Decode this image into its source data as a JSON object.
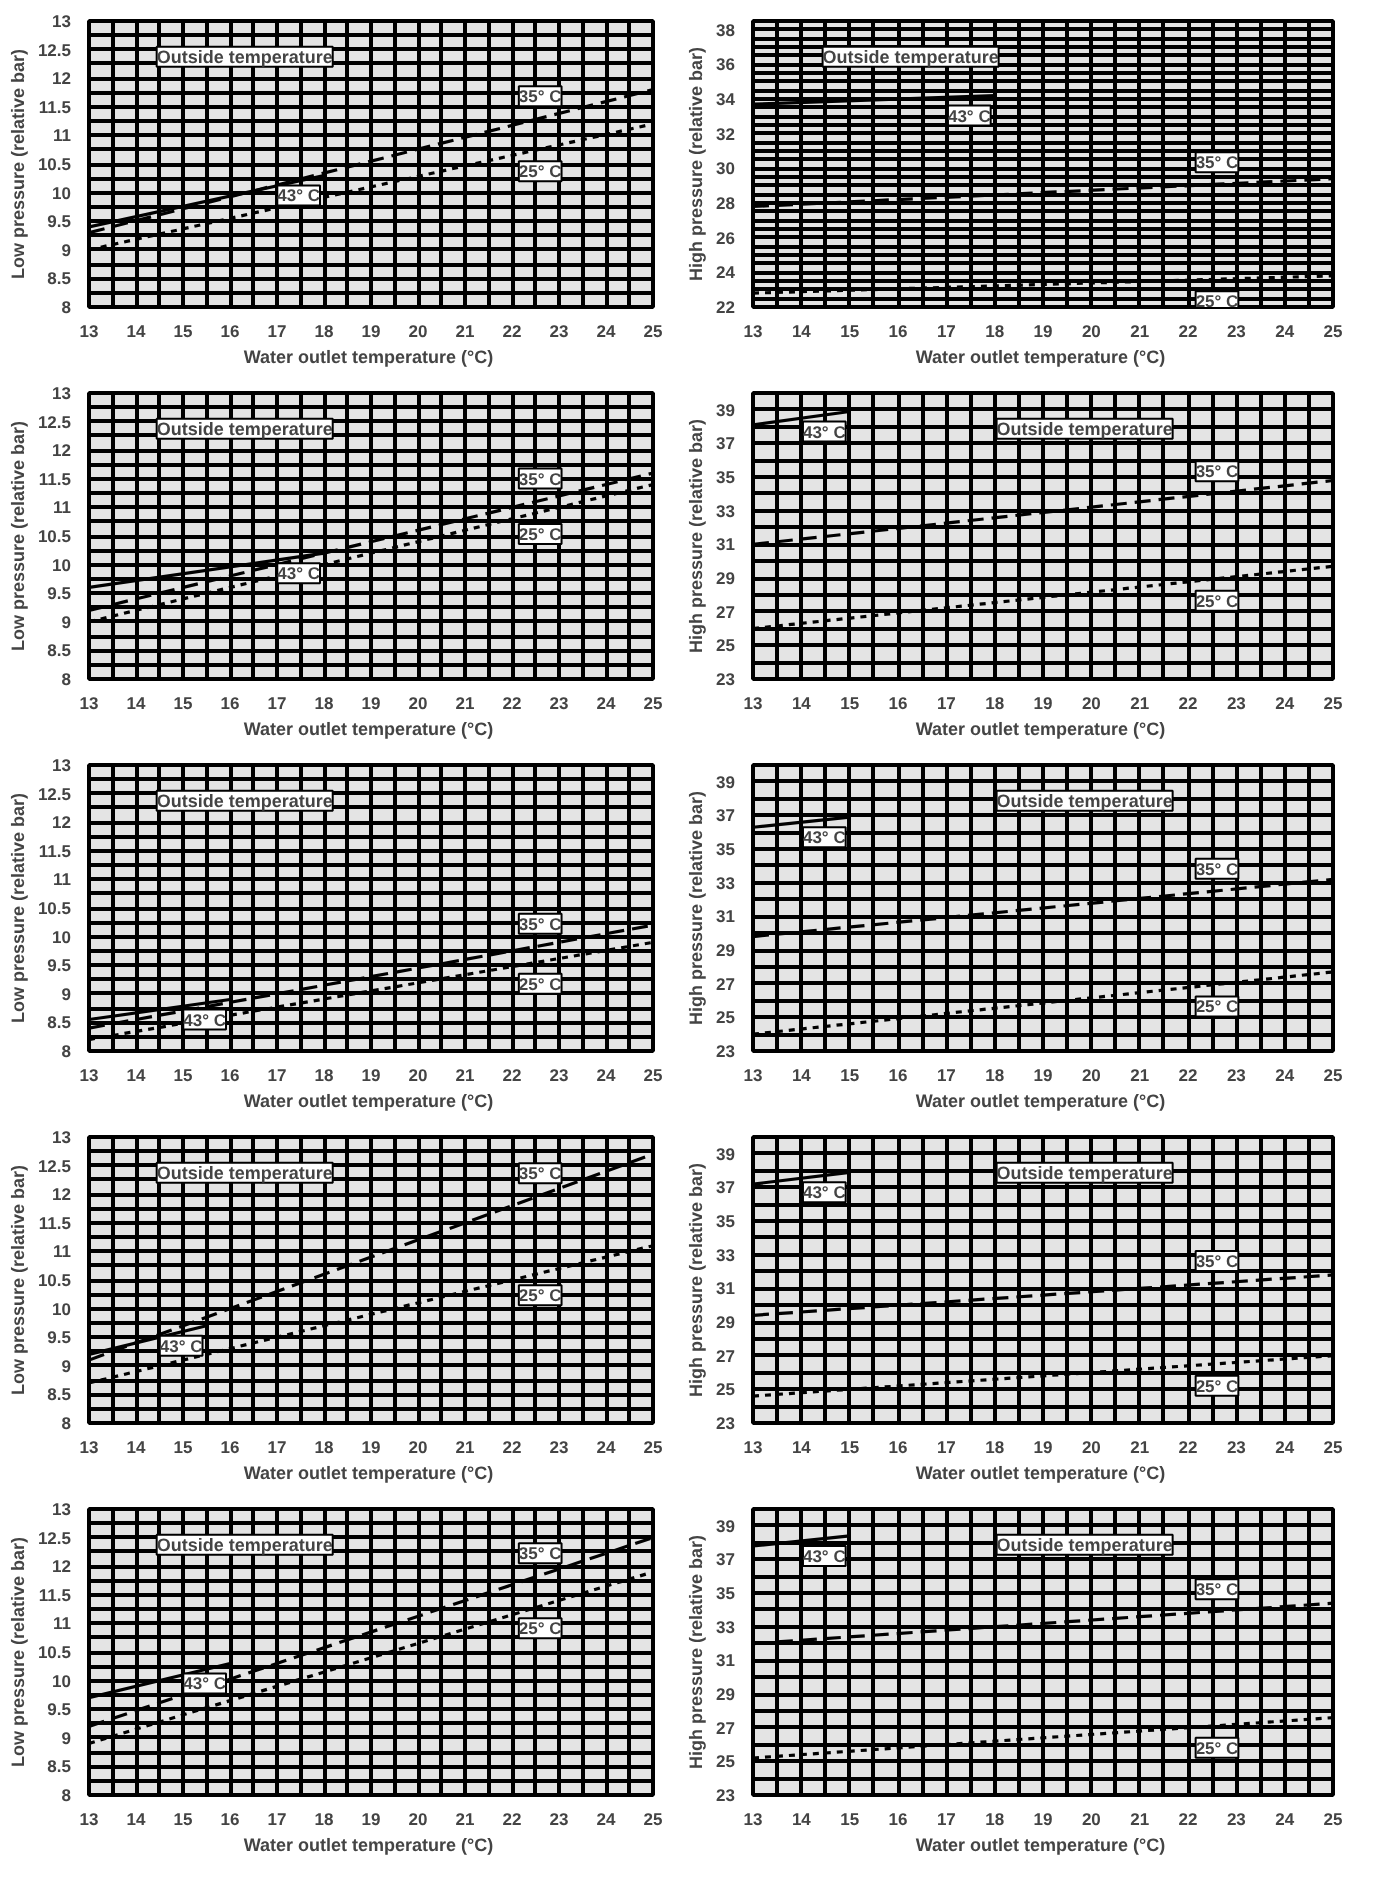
{
  "chart_data": [
    {
      "type": "line",
      "xlabel": "Water outlet temperature  (°C)",
      "ylabel": "Low pressure (relative bar)",
      "annotations": [
        "Outside temperature"
      ],
      "xlim": [
        13,
        25
      ],
      "ylim": [
        8,
        13
      ],
      "grid": true,
      "xticks": [
        13,
        {
          "value": 13.5,
          "label": null
        },
        14,
        {
          "value": 14.5,
          "label": null
        },
        15,
        {
          "value": 15.5,
          "label": null
        },
        16,
        {
          "value": 16.5,
          "label": null
        },
        17,
        {
          "value": 17.5,
          "label": null
        },
        18,
        {
          "value": 18.5,
          "label": null
        },
        19,
        {
          "value": 19.5,
          "label": null
        },
        20,
        {
          "value": 20.5,
          "label": null
        },
        21,
        {
          "value": 21.5,
          "label": null
        },
        22,
        {
          "value": 22.5,
          "label": null
        },
        23,
        {
          "value": 23.5,
          "label": null
        },
        24,
        {
          "value": 24.5,
          "label": null
        },
        25
      ],
      "yticks": [
        8,
        {
          "value": 8.25,
          "label": null
        },
        8.5,
        {
          "value": 8.75,
          "label": null
        },
        9,
        {
          "value": 9.25,
          "label": null
        },
        9.5,
        {
          "value": 9.75,
          "label": null
        },
        10,
        {
          "value": 10.25,
          "label": null
        },
        10.5,
        {
          "value": 10.75,
          "label": null
        },
        11,
        {
          "value": 11.25,
          "label": null
        },
        11.5,
        {
          "value": 11.75,
          "label": null
        },
        12,
        {
          "value": 12.25,
          "label": null
        },
        12.5,
        {
          "value": 12.75,
          "label": null
        },
        13
      ],
      "series": [
        {
          "name": "43° C",
          "color": "#000000",
          "line_style": "solid",
          "x": [
            13,
            18
          ],
          "values": [
            9.4,
            10.3
          ]
        },
        {
          "name": "35° C",
          "color": "#000000",
          "line_style": "dashed",
          "x": [
            13,
            25
          ],
          "values": [
            9.3,
            11.8
          ]
        },
        {
          "name": "25° C",
          "color": "#000000",
          "line_style": "dotted",
          "x": [
            13,
            25
          ],
          "values": [
            9.0,
            11.2
          ]
        }
      ]
    },
    {
      "type": "line",
      "xlabel": "Water outlet temperature  (°C)",
      "ylabel": "High pressure (relative bar)",
      "annotations": [
        "Outside temperature"
      ],
      "xlim": [
        13,
        25
      ],
      "ylim": [
        22,
        38.5
      ],
      "grid": true,
      "xticks": [
        13,
        {
          "value": 13.5,
          "label": null
        },
        14,
        {
          "value": 14.5,
          "label": null
        },
        15,
        {
          "value": 15.5,
          "label": null
        },
        16,
        {
          "value": 16.5,
          "label": null
        },
        17,
        {
          "value": 17.5,
          "label": null
        },
        18,
        {
          "value": 18.5,
          "label": null
        },
        19,
        {
          "value": 19.5,
          "label": null
        },
        20,
        {
          "value": 20.5,
          "label": null
        },
        21,
        {
          "value": 21.5,
          "label": null
        },
        22,
        {
          "value": 22.5,
          "label": null
        },
        23,
        {
          "value": 23.5,
          "label": null
        },
        24,
        {
          "value": 24.5,
          "label": null
        },
        25
      ],
      "yticks": [
        22,
        {
          "value": 22.5,
          "label": null
        },
        {
          "value": 23,
          "label": null
        },
        {
          "value": 23.5,
          "label": null
        },
        24,
        {
          "value": 24.5,
          "label": null
        },
        {
          "value": 25,
          "label": null
        },
        {
          "value": 25.5,
          "label": null
        },
        26,
        {
          "value": 26.5,
          "label": null
        },
        {
          "value": 27,
          "label": null
        },
        {
          "value": 27.5,
          "label": null
        },
        28,
        {
          "value": 28.5,
          "label": null
        },
        {
          "value": 29,
          "label": null
        },
        {
          "value": 29.5,
          "label": null
        },
        30,
        {
          "value": 30.5,
          "label": null
        },
        {
          "value": 31,
          "label": null
        },
        {
          "value": 31.5,
          "label": null
        },
        32,
        {
          "value": 32.5,
          "label": null
        },
        {
          "value": 33,
          "label": null
        },
        {
          "value": 33.5,
          "label": null
        },
        34,
        {
          "value": 34.5,
          "label": null
        },
        {
          "value": 35,
          "label": null
        },
        {
          "value": 35.5,
          "label": null
        },
        36,
        {
          "value": 36.5,
          "label": null
        },
        {
          "value": 37,
          "label": null
        },
        {
          "value": 37.5,
          "label": null
        },
        38,
        {
          "value": 38.5,
          "label": null
        }
      ],
      "series": [
        {
          "name": "43° C",
          "color": "#000000",
          "line_style": "solid",
          "x": [
            13,
            18
          ],
          "values": [
            33.7,
            34.2
          ]
        },
        {
          "name": "35° C",
          "color": "#000000",
          "line_style": "dashed",
          "x": [
            13,
            25
          ],
          "values": [
            27.8,
            29.4
          ]
        },
        {
          "name": "25° C",
          "color": "#000000",
          "line_style": "dotted",
          "x": [
            13,
            25
          ],
          "values": [
            22.8,
            23.8
          ]
        }
      ]
    },
    {
      "type": "line",
      "xlabel": "Water outlet temperature  (°C)",
      "ylabel": "Low pressure (relative bar)",
      "annotations": [
        "Outside temperature"
      ],
      "xlim": [
        13,
        25
      ],
      "ylim": [
        8,
        13
      ],
      "grid": true,
      "xticks": [
        13,
        {
          "value": 13.5,
          "label": null
        },
        14,
        {
          "value": 14.5,
          "label": null
        },
        15,
        {
          "value": 15.5,
          "label": null
        },
        16,
        {
          "value": 16.5,
          "label": null
        },
        17,
        {
          "value": 17.5,
          "label": null
        },
        18,
        {
          "value": 18.5,
          "label": null
        },
        19,
        {
          "value": 19.5,
          "label": null
        },
        20,
        {
          "value": 20.5,
          "label": null
        },
        21,
        {
          "value": 21.5,
          "label": null
        },
        22,
        {
          "value": 22.5,
          "label": null
        },
        23,
        {
          "value": 23.5,
          "label": null
        },
        24,
        {
          "value": 24.5,
          "label": null
        },
        25
      ],
      "yticks": [
        8,
        {
          "value": 8.25,
          "label": null
        },
        8.5,
        {
          "value": 8.75,
          "label": null
        },
        9,
        {
          "value": 9.25,
          "label": null
        },
        9.5,
        {
          "value": 9.75,
          "label": null
        },
        10,
        {
          "value": 10.25,
          "label": null
        },
        10.5,
        {
          "value": 10.75,
          "label": null
        },
        11,
        {
          "value": 11.25,
          "label": null
        },
        11.5,
        {
          "value": 11.75,
          "label": null
        },
        12,
        {
          "value": 12.25,
          "label": null
        },
        12.5,
        {
          "value": 12.75,
          "label": null
        },
        13
      ],
      "series": [
        {
          "name": "43° C",
          "color": "#000000",
          "line_style": "solid",
          "x": [
            13,
            18
          ],
          "values": [
            9.6,
            10.2
          ]
        },
        {
          "name": "35° C",
          "color": "#000000",
          "line_style": "dashed",
          "x": [
            13,
            25
          ],
          "values": [
            9.2,
            11.6
          ]
        },
        {
          "name": "25° C",
          "color": "#000000",
          "line_style": "dotted",
          "x": [
            13,
            25
          ],
          "values": [
            9.0,
            11.4
          ]
        }
      ]
    },
    {
      "type": "line",
      "xlabel": "Water outlet temperature  (°C)",
      "ylabel": "High pressure (relative bar)",
      "annotations": [
        "Outside temperature"
      ],
      "xlim": [
        13,
        25
      ],
      "ylim": [
        23,
        40
      ],
      "grid": true,
      "xticks": [
        13,
        {
          "value": 13.5,
          "label": null
        },
        14,
        {
          "value": 14.5,
          "label": null
        },
        15,
        {
          "value": 15.5,
          "label": null
        },
        16,
        {
          "value": 16.5,
          "label": null
        },
        17,
        {
          "value": 17.5,
          "label": null
        },
        18,
        {
          "value": 18.5,
          "label": null
        },
        19,
        {
          "value": 19.5,
          "label": null
        },
        20,
        {
          "value": 20.5,
          "label": null
        },
        21,
        {
          "value": 21.5,
          "label": null
        },
        22,
        {
          "value": 22.5,
          "label": null
        },
        23,
        {
          "value": 23.5,
          "label": null
        },
        24,
        {
          "value": 24.5,
          "label": null
        },
        25
      ],
      "yticks": [
        23,
        {
          "value": 24,
          "label": null
        },
        25,
        {
          "value": 26,
          "label": null
        },
        27,
        {
          "value": 28,
          "label": null
        },
        29,
        {
          "value": 30,
          "label": null
        },
        31,
        {
          "value": 32,
          "label": null
        },
        33,
        {
          "value": 34,
          "label": null
        },
        35,
        {
          "value": 36,
          "label": null
        },
        37,
        {
          "value": 38,
          "label": null
        },
        39,
        {
          "value": 40,
          "label": null
        }
      ],
      "series": [
        {
          "name": "43° C",
          "color": "#000000",
          "line_style": "solid",
          "x": [
            13,
            15
          ],
          "values": [
            38.1,
            38.9
          ]
        },
        {
          "name": "35° C",
          "color": "#000000",
          "line_style": "dashed",
          "x": [
            13,
            25
          ],
          "values": [
            31.0,
            34.8
          ]
        },
        {
          "name": "25° C",
          "color": "#000000",
          "line_style": "dotted",
          "x": [
            13,
            25
          ],
          "values": [
            26.0,
            29.7
          ]
        }
      ]
    },
    {
      "type": "line",
      "xlabel": "Water outlet temperature  (°C)",
      "ylabel": "Low pressure (relative bar)",
      "annotations": [
        "Outside temperature"
      ],
      "xlim": [
        13,
        25
      ],
      "ylim": [
        8,
        13
      ],
      "grid": true,
      "xticks": [
        13,
        {
          "value": 13.5,
          "label": null
        },
        14,
        {
          "value": 14.5,
          "label": null
        },
        15,
        {
          "value": 15.5,
          "label": null
        },
        16,
        {
          "value": 16.5,
          "label": null
        },
        17,
        {
          "value": 17.5,
          "label": null
        },
        18,
        {
          "value": 18.5,
          "label": null
        },
        19,
        {
          "value": 19.5,
          "label": null
        },
        20,
        {
          "value": 20.5,
          "label": null
        },
        21,
        {
          "value": 21.5,
          "label": null
        },
        22,
        {
          "value": 22.5,
          "label": null
        },
        23,
        {
          "value": 23.5,
          "label": null
        },
        24,
        {
          "value": 24.5,
          "label": null
        },
        25
      ],
      "yticks": [
        8,
        {
          "value": 8.25,
          "label": null
        },
        8.5,
        {
          "value": 8.75,
          "label": null
        },
        9,
        {
          "value": 9.25,
          "label": null
        },
        9.5,
        {
          "value": 9.75,
          "label": null
        },
        10,
        {
          "value": 10.25,
          "label": null
        },
        10.5,
        {
          "value": 10.75,
          "label": null
        },
        11,
        {
          "value": 11.25,
          "label": null
        },
        11.5,
        {
          "value": 11.75,
          "label": null
        },
        12,
        {
          "value": 12.25,
          "label": null
        },
        12.5,
        {
          "value": 12.75,
          "label": null
        },
        13
      ],
      "series": [
        {
          "name": "43° C",
          "color": "#000000",
          "line_style": "solid",
          "x": [
            13,
            16
          ],
          "values": [
            8.55,
            8.9
          ]
        },
        {
          "name": "35° C",
          "color": "#000000",
          "line_style": "dashed",
          "x": [
            13,
            25
          ],
          "values": [
            8.4,
            10.2
          ]
        },
        {
          "name": "25° C",
          "color": "#000000",
          "line_style": "dotted",
          "x": [
            13,
            25
          ],
          "values": [
            8.2,
            9.9
          ]
        }
      ]
    },
    {
      "type": "line",
      "xlabel": "Water outlet temperature  (°C)",
      "ylabel": "High pressure (relative bar)",
      "annotations": [
        "Outside temperature"
      ],
      "xlim": [
        13,
        25
      ],
      "ylim": [
        23,
        40
      ],
      "grid": true,
      "xticks": [
        13,
        {
          "value": 13.5,
          "label": null
        },
        14,
        {
          "value": 14.5,
          "label": null
        },
        15,
        {
          "value": 15.5,
          "label": null
        },
        16,
        {
          "value": 16.5,
          "label": null
        },
        17,
        {
          "value": 17.5,
          "label": null
        },
        18,
        {
          "value": 18.5,
          "label": null
        },
        19,
        {
          "value": 19.5,
          "label": null
        },
        20,
        {
          "value": 20.5,
          "label": null
        },
        21,
        {
          "value": 21.5,
          "label": null
        },
        22,
        {
          "value": 22.5,
          "label": null
        },
        23,
        {
          "value": 23.5,
          "label": null
        },
        24,
        {
          "value": 24.5,
          "label": null
        },
        25
      ],
      "yticks": [
        23,
        {
          "value": 24,
          "label": null
        },
        25,
        {
          "value": 26,
          "label": null
        },
        27,
        {
          "value": 28,
          "label": null
        },
        29,
        {
          "value": 30,
          "label": null
        },
        31,
        {
          "value": 32,
          "label": null
        },
        33,
        {
          "value": 34,
          "label": null
        },
        35,
        {
          "value": 36,
          "label": null
        },
        37,
        {
          "value": 38,
          "label": null
        },
        39,
        {
          "value": 40,
          "label": null
        }
      ],
      "series": [
        {
          "name": "43° C",
          "color": "#000000",
          "line_style": "solid",
          "x": [
            13,
            15
          ],
          "values": [
            36.3,
            36.9
          ]
        },
        {
          "name": "35° C",
          "color": "#000000",
          "line_style": "dashed",
          "x": [
            13,
            25
          ],
          "values": [
            29.8,
            33.2
          ]
        },
        {
          "name": "25° C",
          "color": "#000000",
          "line_style": "dotted",
          "x": [
            13,
            25
          ],
          "values": [
            24.0,
            27.7
          ]
        }
      ]
    },
    {
      "type": "line",
      "xlabel": "Water outlet temperature  (°C)",
      "ylabel": "Low pressure (relative bar)",
      "annotations": [
        "Outside temperature"
      ],
      "xlim": [
        13,
        25
      ],
      "ylim": [
        8,
        13
      ],
      "grid": true,
      "xticks": [
        13,
        {
          "value": 13.5,
          "label": null
        },
        14,
        {
          "value": 14.5,
          "label": null
        },
        15,
        {
          "value": 15.5,
          "label": null
        },
        16,
        {
          "value": 16.5,
          "label": null
        },
        17,
        {
          "value": 17.5,
          "label": null
        },
        18,
        {
          "value": 18.5,
          "label": null
        },
        19,
        {
          "value": 19.5,
          "label": null
        },
        20,
        {
          "value": 20.5,
          "label": null
        },
        21,
        {
          "value": 21.5,
          "label": null
        },
        22,
        {
          "value": 22.5,
          "label": null
        },
        23,
        {
          "value": 23.5,
          "label": null
        },
        24,
        {
          "value": 24.5,
          "label": null
        },
        25
      ],
      "yticks": [
        8,
        {
          "value": 8.25,
          "label": null
        },
        8.5,
        {
          "value": 8.75,
          "label": null
        },
        9,
        {
          "value": 9.25,
          "label": null
        },
        9.5,
        {
          "value": 9.75,
          "label": null
        },
        10,
        {
          "value": 10.25,
          "label": null
        },
        10.5,
        {
          "value": 10.75,
          "label": null
        },
        11,
        {
          "value": 11.25,
          "label": null
        },
        11.5,
        {
          "value": 11.75,
          "label": null
        },
        12,
        {
          "value": 12.25,
          "label": null
        },
        12.5,
        {
          "value": 12.75,
          "label": null
        },
        13
      ],
      "series": [
        {
          "name": "43° C",
          "color": "#000000",
          "line_style": "solid",
          "x": [
            13,
            15.5
          ],
          "values": [
            9.2,
            9.7
          ]
        },
        {
          "name": "35° C",
          "color": "#000000",
          "line_style": "dashed",
          "x": [
            13,
            25
          ],
          "values": [
            9.1,
            12.7
          ]
        },
        {
          "name": "25° C",
          "color": "#000000",
          "line_style": "dotted",
          "x": [
            13,
            25
          ],
          "values": [
            8.7,
            11.1
          ]
        }
      ]
    },
    {
      "type": "line",
      "xlabel": "Water outlet temperature  (°C)",
      "ylabel": "High pressure (relative bar)",
      "annotations": [
        "Outside temperature"
      ],
      "xlim": [
        13,
        25
      ],
      "ylim": [
        23,
        40
      ],
      "grid": true,
      "xticks": [
        13,
        {
          "value": 13.5,
          "label": null
        },
        14,
        {
          "value": 14.5,
          "label": null
        },
        15,
        {
          "value": 15.5,
          "label": null
        },
        16,
        {
          "value": 16.5,
          "label": null
        },
        17,
        {
          "value": 17.5,
          "label": null
        },
        18,
        {
          "value": 18.5,
          "label": null
        },
        19,
        {
          "value": 19.5,
          "label": null
        },
        20,
        {
          "value": 20.5,
          "label": null
        },
        21,
        {
          "value": 21.5,
          "label": null
        },
        22,
        {
          "value": 22.5,
          "label": null
        },
        23,
        {
          "value": 23.5,
          "label": null
        },
        24,
        {
          "value": 24.5,
          "label": null
        },
        25
      ],
      "yticks": [
        23,
        {
          "value": 24,
          "label": null
        },
        25,
        {
          "value": 26,
          "label": null
        },
        27,
        {
          "value": 28,
          "label": null
        },
        29,
        {
          "value": 30,
          "label": null
        },
        31,
        {
          "value": 32,
          "label": null
        },
        33,
        {
          "value": 34,
          "label": null
        },
        35,
        {
          "value": 36,
          "label": null
        },
        37,
        {
          "value": 38,
          "label": null
        },
        39,
        {
          "value": 40,
          "label": null
        }
      ],
      "series": [
        {
          "name": "43° C",
          "color": "#000000",
          "line_style": "solid",
          "x": [
            13,
            15
          ],
          "values": [
            37.2,
            37.9
          ]
        },
        {
          "name": "35° C",
          "color": "#000000",
          "line_style": "dashed",
          "x": [
            13,
            25
          ],
          "values": [
            29.4,
            31.8
          ]
        },
        {
          "name": "25° C",
          "color": "#000000",
          "line_style": "dotted",
          "x": [
            13,
            25
          ],
          "values": [
            24.6,
            27.0
          ]
        }
      ]
    },
    {
      "type": "line",
      "xlabel": "Water outlet temperature  (°C)",
      "ylabel": "Low pressure (relative bar)",
      "annotations": [
        "Outside temperature"
      ],
      "xlim": [
        13,
        25
      ],
      "ylim": [
        8,
        13
      ],
      "grid": true,
      "xticks": [
        13,
        {
          "value": 13.5,
          "label": null
        },
        14,
        {
          "value": 14.5,
          "label": null
        },
        15,
        {
          "value": 15.5,
          "label": null
        },
        16,
        {
          "value": 16.5,
          "label": null
        },
        17,
        {
          "value": 17.5,
          "label": null
        },
        18,
        {
          "value": 18.5,
          "label": null
        },
        19,
        {
          "value": 19.5,
          "label": null
        },
        20,
        {
          "value": 20.5,
          "label": null
        },
        21,
        {
          "value": 21.5,
          "label": null
        },
        22,
        {
          "value": 22.5,
          "label": null
        },
        23,
        {
          "value": 23.5,
          "label": null
        },
        24,
        {
          "value": 24.5,
          "label": null
        },
        25
      ],
      "yticks": [
        8,
        {
          "value": 8.25,
          "label": null
        },
        8.5,
        {
          "value": 8.75,
          "label": null
        },
        9,
        {
          "value": 9.25,
          "label": null
        },
        9.5,
        {
          "value": 9.75,
          "label": null
        },
        10,
        {
          "value": 10.25,
          "label": null
        },
        10.5,
        {
          "value": 10.75,
          "label": null
        },
        11,
        {
          "value": 11.25,
          "label": null
        },
        11.5,
        {
          "value": 11.75,
          "label": null
        },
        12,
        {
          "value": 12.25,
          "label": null
        },
        12.5,
        {
          "value": 12.75,
          "label": null
        },
        13
      ],
      "series": [
        {
          "name": "43° C",
          "color": "#000000",
          "line_style": "solid",
          "x": [
            13,
            16
          ],
          "values": [
            9.7,
            10.3
          ]
        },
        {
          "name": "35° C",
          "color": "#000000",
          "line_style": "dashed",
          "x": [
            13,
            25
          ],
          "values": [
            9.2,
            12.5
          ]
        },
        {
          "name": "25° C",
          "color": "#000000",
          "line_style": "dotted",
          "x": [
            13,
            25
          ],
          "values": [
            8.9,
            11.9
          ]
        }
      ]
    },
    {
      "type": "line",
      "xlabel": "Water outlet temperature  (°C)",
      "ylabel": "High pressure (relative bar)",
      "annotations": [
        "Outside temperature"
      ],
      "xlim": [
        13,
        25
      ],
      "ylim": [
        23,
        40
      ],
      "grid": true,
      "xticks": [
        13,
        {
          "value": 13.5,
          "label": null
        },
        14,
        {
          "value": 14.5,
          "label": null
        },
        15,
        {
          "value": 15.5,
          "label": null
        },
        16,
        {
          "value": 16.5,
          "label": null
        },
        17,
        {
          "value": 17.5,
          "label": null
        },
        18,
        {
          "value": 18.5,
          "label": null
        },
        19,
        {
          "value": 19.5,
          "label": null
        },
        20,
        {
          "value": 20.5,
          "label": null
        },
        21,
        {
          "value": 21.5,
          "label": null
        },
        22,
        {
          "value": 22.5,
          "label": null
        },
        23,
        {
          "value": 23.5,
          "label": null
        },
        24,
        {
          "value": 24.5,
          "label": null
        },
        25
      ],
      "yticks": [
        23,
        {
          "value": 24,
          "label": null
        },
        25,
        {
          "value": 26,
          "label": null
        },
        27,
        {
          "value": 28,
          "label": null
        },
        29,
        {
          "value": 30,
          "label": null
        },
        31,
        {
          "value": 32,
          "label": null
        },
        33,
        {
          "value": 34,
          "label": null
        },
        35,
        {
          "value": 36,
          "label": null
        },
        37,
        {
          "value": 38,
          "label": null
        },
        39,
        {
          "value": 40,
          "label": null
        }
      ],
      "series": [
        {
          "name": "43° C",
          "color": "#000000",
          "line_style": "solid",
          "x": [
            13,
            15
          ],
          "values": [
            37.8,
            38.4
          ]
        },
        {
          "name": "35° C",
          "color": "#000000",
          "line_style": "dashed",
          "x": [
            13,
            25
          ],
          "values": [
            32.0,
            34.4
          ]
        },
        {
          "name": "25° C",
          "color": "#000000",
          "line_style": "dotted",
          "x": [
            13,
            25
          ],
          "values": [
            25.2,
            27.6
          ]
        }
      ]
    }
  ]
}
